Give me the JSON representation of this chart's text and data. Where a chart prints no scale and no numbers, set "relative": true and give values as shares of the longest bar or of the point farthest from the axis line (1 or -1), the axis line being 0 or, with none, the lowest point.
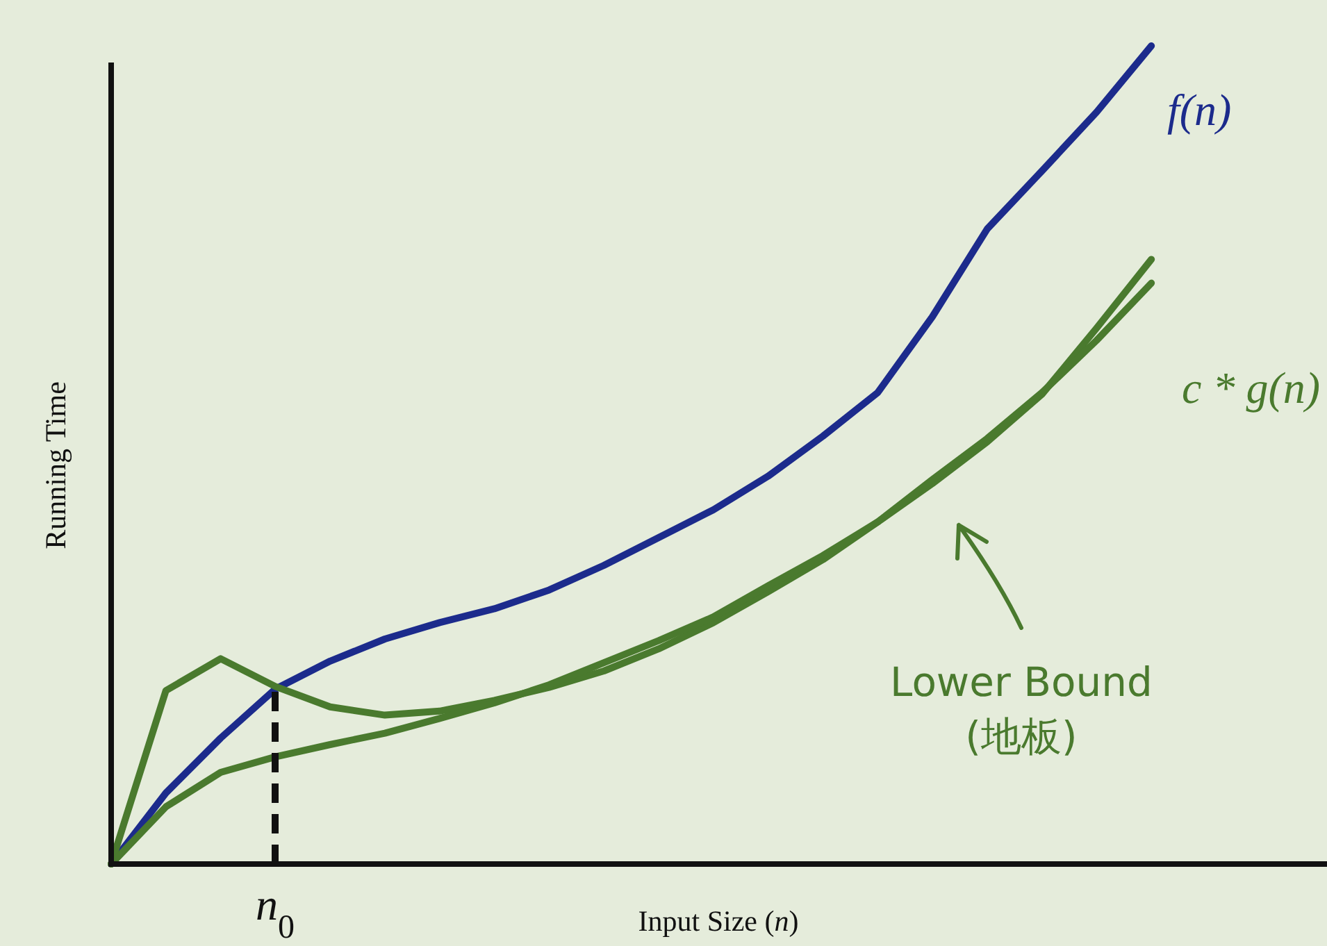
{
  "chart_data": {
    "type": "line",
    "relative": true,
    "xlabel": "Input Size (*n*)",
    "ylabel": "Running Time",
    "marker": "none",
    "line_style": "solid",
    "categories": [
      null,
      null,
      null,
      null,
      null,
      null,
      null,
      null,
      null,
      null,
      null,
      null,
      null,
      null,
      null,
      null,
      null,
      null,
      null,
      null
    ],
    "series": [
      {
        "name": "f(n)",
        "color": "#1c2b8c",
        "values": [
          0,
          0.087,
          0.154,
          0.214,
          0.248,
          0.275,
          0.295,
          0.312,
          0.335,
          0.365,
          0.399,
          0.433,
          0.474,
          0.523,
          0.576,
          0.669,
          0.776,
          0.847,
          0.919,
          1
        ]
      },
      {
        "color": "#4a7a2e",
        "values": [
          0,
          0.212,
          0.251,
          0.217,
          0.192,
          0.182,
          0.187,
          0.2,
          0.216,
          0.236,
          0.263,
          0.295,
          0.333,
          0.372,
          0.418,
          0.465,
          0.516,
          0.574,
          0.655,
          0.739
        ]
      },
      {
        "name": "c * g(n)",
        "color": "#4a7a2e",
        "values": [
          0,
          0.07,
          0.112,
          0.131,
          0.146,
          0.16,
          0.178,
          0.197,
          0.219,
          0.246,
          0.273,
          0.302,
          0.34,
          0.377,
          0.418,
          0.47,
          0.52,
          0.576,
          0.64,
          0.71
        ]
      }
    ],
    "annotations": [
      "Lower Bound (地板)",
      "*n*$_{0}$"
    ]
  }
}
